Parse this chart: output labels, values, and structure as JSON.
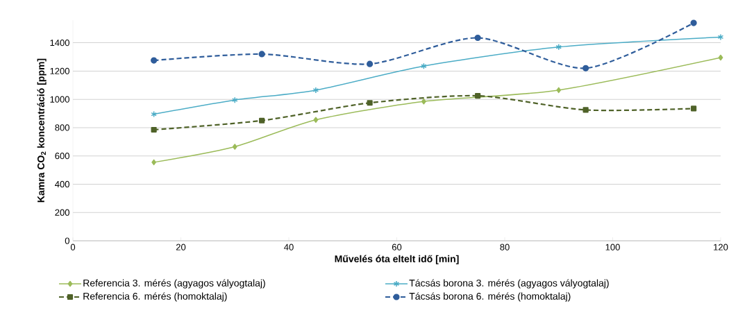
{
  "chart_data": {
    "type": "line",
    "xlabel": "Művelés óta eltelt idő [min]",
    "ylabel": "Kamra CO$_{2}$ koncentráció [ppm]",
    "xlim": [
      0,
      120
    ],
    "xticks": [
      0,
      20,
      40,
      60,
      80,
      100,
      120
    ],
    "ylim": [
      0,
      1560
    ],
    "yticks": [
      0,
      200,
      400,
      600,
      800,
      1000,
      1200,
      1400
    ],
    "grid": "y",
    "legend": "bottom",
    "series": [
      {
        "name": "Referencia 3. mérés (agyagos vályogtalaj)",
        "color": "#9bbb59",
        "marker": "diamond",
        "line_style": "solid",
        "x": [
          15,
          30,
          45,
          65,
          90,
          120
        ],
        "values": [
          555,
          665,
          855,
          985,
          1065,
          1295
        ]
      },
      {
        "name": "Tácsás borona 3. mérés (agyagos vályogtalaj)",
        "color": "#4bacc6",
        "marker": "cross",
        "line_style": "solid",
        "x": [
          15,
          30,
          45,
          65,
          90,
          120
        ],
        "values": [
          895,
          995,
          1065,
          1235,
          1370,
          1440
        ]
      },
      {
        "name": "Referencia 6. mérés (homoktalaj)",
        "color": "#4f6228",
        "marker": "square",
        "line_style": "dashed",
        "x": [
          15,
          35,
          55,
          75,
          95,
          115
        ],
        "values": [
          785,
          850,
          975,
          1025,
          925,
          935
        ]
      },
      {
        "name": "Tácsás borona 6. mérés (homoktalaj)",
        "color": "#2f5d9b",
        "marker": "circle",
        "line_style": "dashed",
        "x": [
          15,
          35,
          55,
          75,
          95,
          115
        ],
        "values": [
          1275,
          1320,
          1250,
          1435,
          1220,
          1540
        ]
      }
    ]
  }
}
